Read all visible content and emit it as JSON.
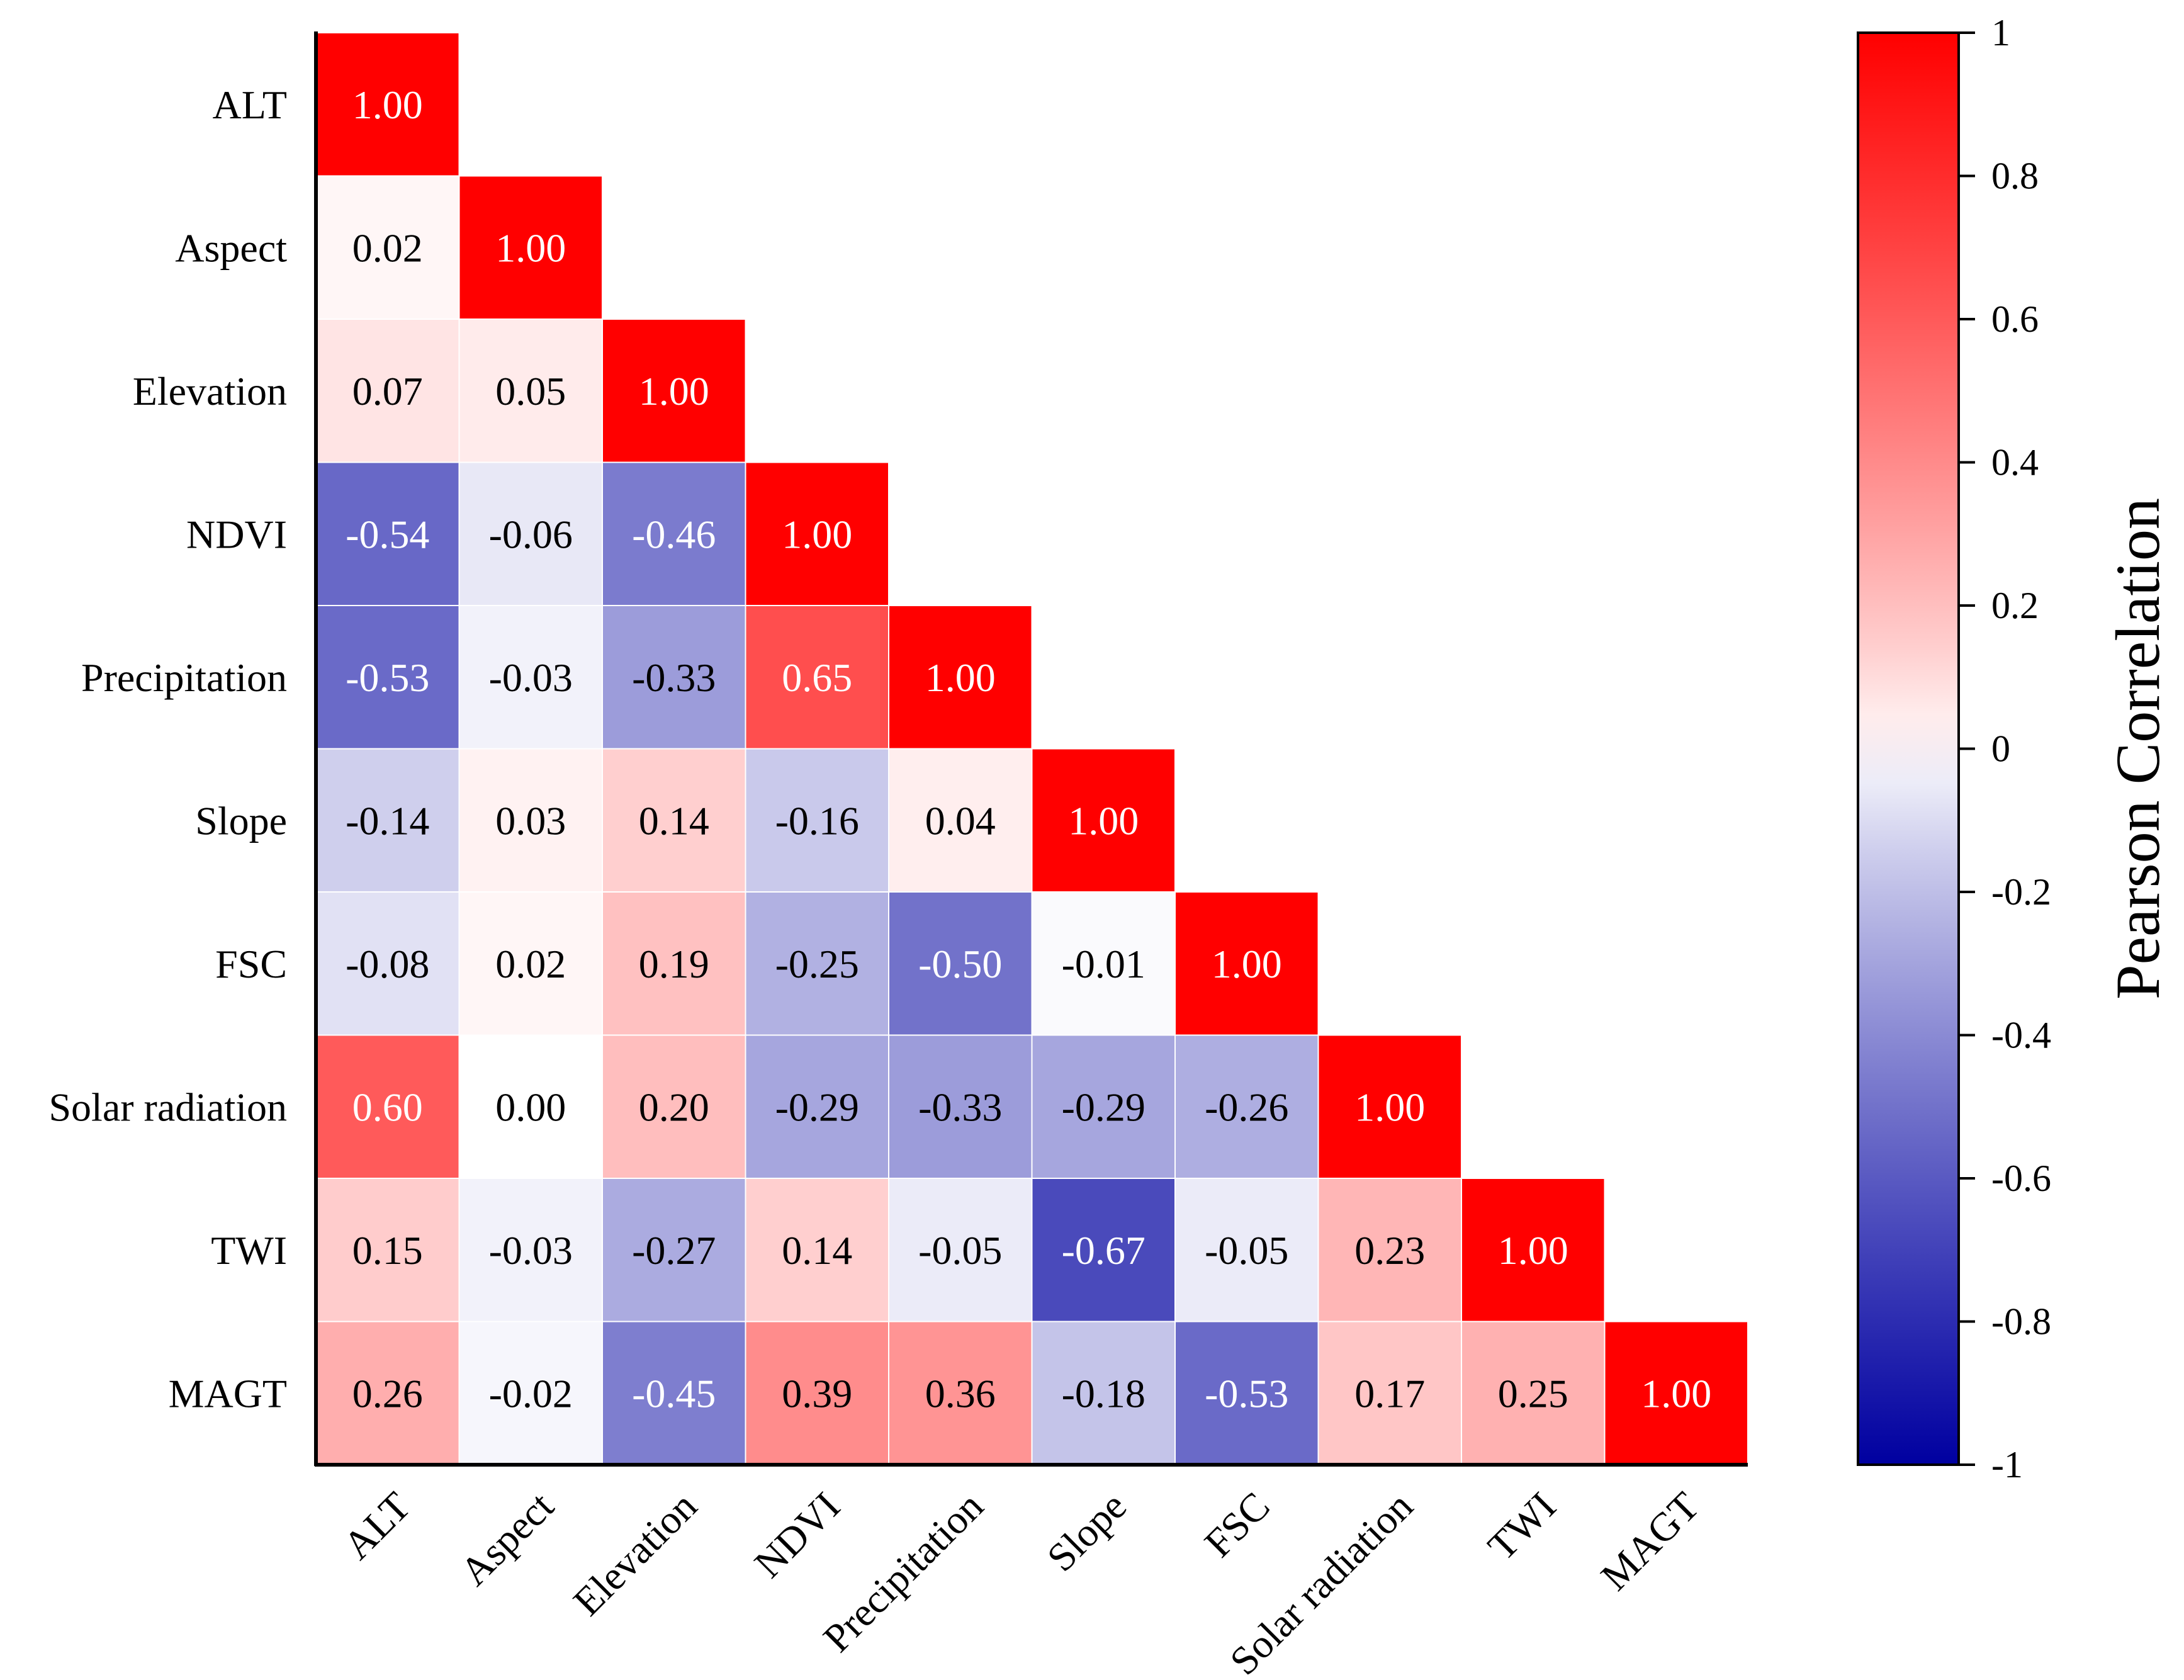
{
  "chart_data": {
    "type": "heatmap",
    "subtype": "lower-triangle correlation matrix",
    "variables": [
      "ALT",
      "Aspect",
      "Elevation",
      "NDVI",
      "Precipitation",
      "Slope",
      "FSC",
      "Solar radiation",
      "TWI",
      "MAGT"
    ],
    "matrix": [
      [
        1.0
      ],
      [
        0.02,
        1.0
      ],
      [
        0.07,
        0.05,
        1.0
      ],
      [
        -0.54,
        -0.06,
        -0.46,
        1.0
      ],
      [
        -0.53,
        -0.03,
        -0.33,
        0.65,
        1.0
      ],
      [
        -0.14,
        0.03,
        0.14,
        -0.16,
        0.04,
        1.0
      ],
      [
        -0.08,
        0.02,
        0.19,
        -0.25,
        -0.5,
        -0.01,
        1.0
      ],
      [
        0.6,
        -0.0,
        0.2,
        -0.29,
        -0.33,
        -0.29,
        -0.26,
        1.0
      ],
      [
        0.15,
        -0.03,
        -0.27,
        0.14,
        -0.05,
        -0.67,
        -0.05,
        0.23,
        1.0
      ],
      [
        0.26,
        -0.02,
        -0.45,
        0.39,
        0.36,
        -0.18,
        -0.53,
        0.17,
        0.25,
        1.0
      ]
    ],
    "colorbar": {
      "title": "Pearson Correlation",
      "range": [
        -1,
        1
      ],
      "ticks": [
        1,
        0.8,
        0.6,
        0.4,
        0.2,
        0,
        -0.2,
        -0.4,
        -0.6,
        -0.8,
        -1
      ],
      "tick_labels": [
        "1",
        "0.8",
        "0.6",
        "0.4",
        "0.2",
        "0",
        "-0.2",
        "-0.4",
        "-0.6",
        "-0.8",
        "-1"
      ],
      "colors": {
        "negative": "#0000a0",
        "zero": "#ffffff",
        "positive": "#ff0000"
      }
    },
    "text_colors": {
      "on_dark": "#ffffff",
      "on_light": "#000000"
    }
  }
}
